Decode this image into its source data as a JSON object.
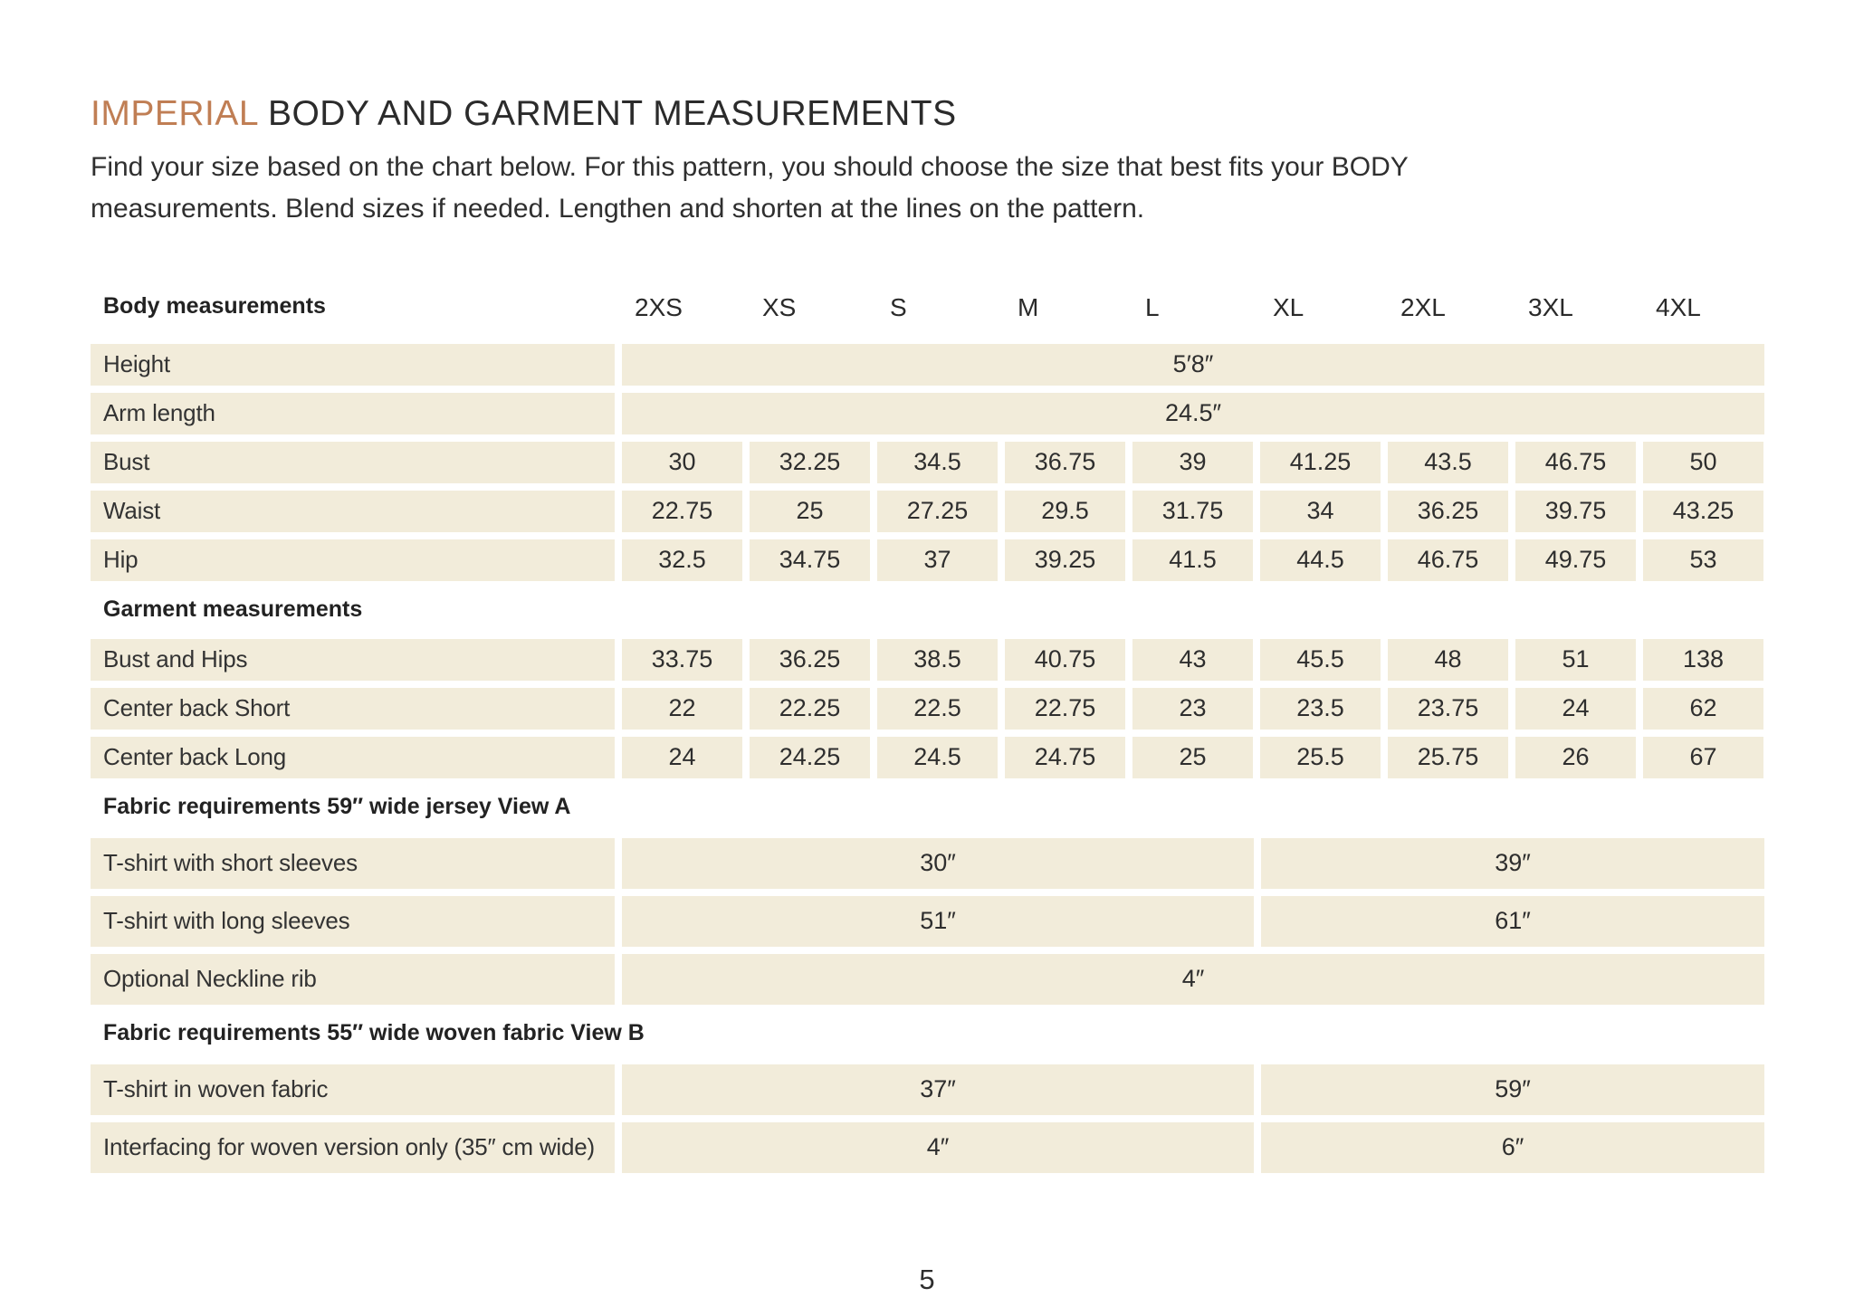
{
  "page": {
    "title_accent": "IMPERIAL",
    "title_rest": "BODY AND GARMENT MEASUREMENTS",
    "intro_lines": [
      "Find your size based on the chart below. For this pattern, you should choose the size that best fits your BODY",
      "measurements. Blend sizes if needed. Lengthen and shorten at the lines on the pattern."
    ],
    "page_number": "5"
  },
  "colors": {
    "accent_orange": "#C07E54",
    "cell_beige": "#F2ECDA",
    "text_dark": "#2E2E2E",
    "background": "#FFFFFF"
  },
  "table": {
    "header_label": "Body measurements",
    "sizes": [
      "2XS",
      "XS",
      "S",
      "M",
      "L",
      "XL",
      "2XL",
      "3XL",
      "4XL"
    ],
    "body": {
      "rows": [
        {
          "label": "Height",
          "span_all": "5′8″"
        },
        {
          "label": "Arm length",
          "span_all": "24.5″"
        },
        {
          "label": "Bust",
          "values": [
            "30",
            "32.25",
            "34.5",
            "36.75",
            "39",
            "41.25",
            "43.5",
            "46.75",
            "50"
          ]
        },
        {
          "label": "Waist",
          "values": [
            "22.75",
            "25",
            "27.25",
            "29.5",
            "31.75",
            "34",
            "36.25",
            "39.75",
            "43.25"
          ]
        },
        {
          "label": "Hip",
          "values": [
            "32.5",
            "34.75",
            "37",
            "39.25",
            "41.5",
            "44.5",
            "46.75",
            "49.75",
            "53"
          ]
        }
      ]
    },
    "garment": {
      "header": "Garment measurements",
      "rows": [
        {
          "label": "Bust and Hips",
          "values": [
            "33.75",
            "36.25",
            "38.5",
            "40.75",
            "43",
            "45.5",
            "48",
            "51",
            "138"
          ]
        },
        {
          "label": "Center back Short",
          "values": [
            "22",
            "22.25",
            "22.5",
            "22.75",
            "23",
            "23.5",
            "23.75",
            "24",
            "62"
          ]
        },
        {
          "label": "Center back Long",
          "values": [
            "24",
            "24.25",
            "24.5",
            "24.75",
            "25",
            "25.5",
            "25.75",
            "26",
            "67"
          ]
        }
      ]
    },
    "fabric_a": {
      "header": "Fabric requirements 59″ wide jersey View A",
      "rows": [
        {
          "label": "T-shirt with short sleeves",
          "left": "30″",
          "right": "39″"
        },
        {
          "label": "T-shirt with long sleeves",
          "left": "51″",
          "right": "61″"
        },
        {
          "label": "Optional Neckline rib",
          "span_all": "4″"
        }
      ]
    },
    "fabric_b": {
      "header": "Fabric requirements 55″ wide woven fabric View B",
      "rows": [
        {
          "label": "T-shirt in woven fabric",
          "left": "37″",
          "right": "59″"
        },
        {
          "label": "Interfacing for woven version only (35″ cm wide)",
          "left": "4″",
          "right": "6″"
        }
      ]
    }
  }
}
